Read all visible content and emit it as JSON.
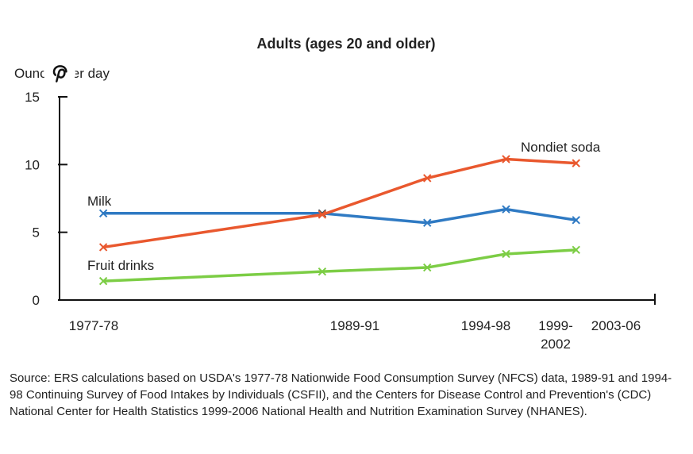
{
  "chart_data": {
    "type": "line",
    "title": "Adults (ages 20 and older)",
    "ylabel": "Ounces per day",
    "ylim": [
      0,
      15
    ],
    "yticks": [
      0,
      5,
      10,
      15
    ],
    "yticklabels": [
      "0",
      "5",
      "10",
      "15"
    ],
    "categories": [
      "1977-78",
      "1989-91",
      "1994-98",
      "1999-2002",
      "2003-06"
    ],
    "x_positions_years": [
      1977.5,
      1990,
      1996,
      2000.5,
      2004.5
    ],
    "xticklabels": [
      [
        "1977-78"
      ],
      [
        "1989-91"
      ],
      [
        "1994-98"
      ],
      [
        "1999-",
        "2002"
      ],
      [
        "2003-06"
      ]
    ],
    "series": [
      {
        "name": "Milk",
        "color": "#2f7ac3",
        "values": [
          6.4,
          6.4,
          5.7,
          6.7,
          5.9
        ],
        "label_anchor": "left"
      },
      {
        "name": "Nondiet soda",
        "color": "#e9582e",
        "values": [
          3.9,
          6.3,
          9.0,
          10.4,
          10.1
        ],
        "label_anchor": "right"
      },
      {
        "name": "Fruit drinks",
        "color": "#7ccd45",
        "values": [
          1.4,
          2.1,
          2.4,
          3.4,
          3.7
        ],
        "label_anchor": "left"
      }
    ],
    "grid": false,
    "legend": "inline-labels"
  },
  "source_note": "Source: ERS calculations based on USDA's 1977-78 Nationwide Food Consumption Survey (NFCS) data, 1989-91 and 1994-98 Continuing Survey of Food Intakes by Individuals (CSFII), and the Centers for Disease Control and Prevention's (CDC) National Center for Health Statistics 1999-2006 National Health and Nutrition Examination Survey (NHANES).",
  "overlay": {
    "pinterest_icon": "pinterest-icon",
    "pinterest_color": "#111111"
  }
}
